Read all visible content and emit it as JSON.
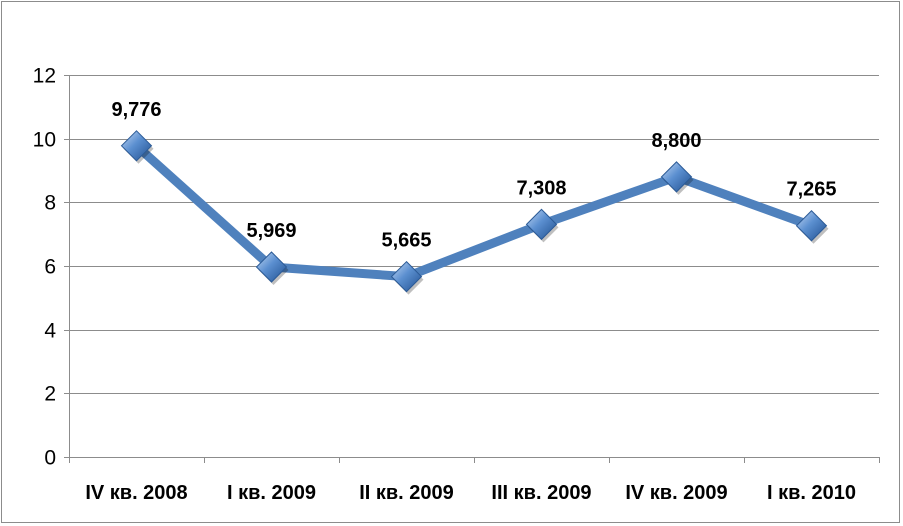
{
  "chart_data": {
    "type": "line",
    "title": "",
    "xlabel": "",
    "ylabel": "",
    "categories": [
      "IV кв. 2008",
      "I кв. 2009",
      "II кв. 2009",
      "III кв. 2009",
      "IV кв. 2009",
      "I кв. 2010"
    ],
    "series": [
      {
        "values": [
          9.776,
          5.969,
          5.665,
          7.308,
          8.8,
          7.265
        ],
        "labels": [
          "9,776",
          "5,969",
          "5,665",
          "7,308",
          "8,800",
          "7,265"
        ],
        "color": "#4f81bd",
        "marker": "diamond"
      }
    ],
    "ylim": [
      0,
      12
    ],
    "yticks": [
      0,
      2,
      4,
      6,
      8,
      10,
      12
    ],
    "ytick_labels": [
      "0",
      "2",
      "4",
      "6",
      "8",
      "10",
      "12"
    ],
    "grid": true,
    "legend": "none"
  }
}
